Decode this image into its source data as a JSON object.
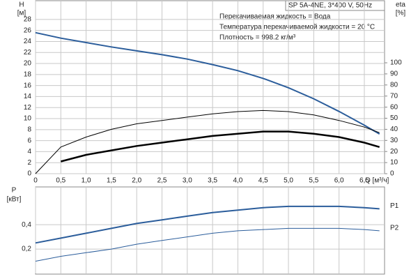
{
  "chart_data": [
    {
      "type": "line",
      "title": "SP 5A-4NE, 3*400 V, 50Hz",
      "annotations": [
        "Перекачиваемая жидкость = Вода",
        "Температура перекачиваемой жидкости = 20 °C",
        "Плотность = 998.2 кг/м³"
      ],
      "ylabel": "H",
      "ylabel_unit": "[м]",
      "y2label": "eta",
      "y2label_unit": "[%]",
      "xlabel": "Q [м³/ч]",
      "x": [
        0,
        0.5,
        1.0,
        1.5,
        2.0,
        2.5,
        3.0,
        3.5,
        4.0,
        4.5,
        5.0,
        5.5,
        6.0,
        6.5,
        6.8
      ],
      "xlim": [
        0,
        6.9
      ],
      "xticks": [
        0,
        {
          "value": 0.5,
          "label": "0,5"
        },
        {
          "value": 1.0,
          "label": "1,0"
        },
        {
          "value": 1.5,
          "label": "1,5"
        },
        {
          "value": 2.0,
          "label": "2,0"
        },
        {
          "value": 2.5,
          "label": "2,5"
        },
        {
          "value": 3.0,
          "label": "3,0"
        },
        {
          "value": 3.5,
          "label": "3,5"
        },
        {
          "value": 4.0,
          "label": "4,0"
        },
        {
          "value": 4.5,
          "label": "4,5"
        },
        {
          "value": 5.0,
          "label": "5,0"
        },
        {
          "value": 5.5,
          "label": "5,5"
        },
        {
          "value": 6.0,
          "label": "6,0"
        },
        {
          "value": 6.5,
          "label": "6,5"
        }
      ],
      "ylim": [
        0,
        31.4
      ],
      "yticks": [
        0,
        2,
        4,
        6,
        8,
        10,
        12,
        14,
        16,
        18,
        20,
        22,
        24,
        26,
        28
      ],
      "y2lim": [
        0,
        156
      ],
      "y2ticks": [
        0,
        10,
        20,
        30,
        40,
        50,
        60,
        70,
        80,
        90,
        100
      ],
      "grid": true,
      "series": [
        {
          "color": "#2b5d9b",
          "width": 2,
          "values": [
            25.6,
            24.6,
            23.8,
            23.0,
            22.3,
            21.6,
            20.8,
            19.8,
            18.7,
            17.3,
            15.6,
            13.6,
            11.3,
            8.8,
            7.2
          ]
        },
        {
          "color": "#000000",
          "width": 1,
          "axis": "y2",
          "values": [
            0,
            24,
            33,
            40,
            45,
            48,
            51,
            54,
            56,
            57,
            56,
            53,
            48,
            42,
            37
          ]
        },
        {
          "color": "#000000",
          "width": 2.5,
          "axis": "y2",
          "values": [
            null,
            11,
            17,
            21,
            25,
            28,
            31,
            34,
            36,
            38,
            38,
            36,
            33,
            28,
            24
          ]
        }
      ]
    },
    {
      "type": "line",
      "ylabel": "P",
      "ylabel_unit": "[кВт]",
      "x": [
        0,
        0.5,
        1.0,
        1.5,
        2.0,
        2.5,
        3.0,
        3.5,
        4.0,
        4.5,
        5.0,
        5.5,
        6.0,
        6.5,
        6.8
      ],
      "xlim": [
        0,
        6.9
      ],
      "ylim": [
        0,
        0.71
      ],
      "yticks": [
        {
          "value": 0.2,
          "label": "0,2"
        },
        {
          "value": 0.4,
          "label": "0,4"
        }
      ],
      "grid": true,
      "series": [
        {
          "name": "P1",
          "color": "#2b5d9b",
          "width": 2,
          "values": [
            0.25,
            0.29,
            0.33,
            0.37,
            0.41,
            0.44,
            0.47,
            0.5,
            0.52,
            0.54,
            0.55,
            0.55,
            0.55,
            0.54,
            0.53
          ]
        },
        {
          "name": "P2",
          "color": "#2b5d9b",
          "width": 1,
          "values": [
            0.1,
            0.14,
            0.17,
            0.2,
            0.24,
            0.27,
            0.3,
            0.33,
            0.35,
            0.36,
            0.37,
            0.37,
            0.37,
            0.36,
            0.35
          ]
        }
      ]
    }
  ]
}
